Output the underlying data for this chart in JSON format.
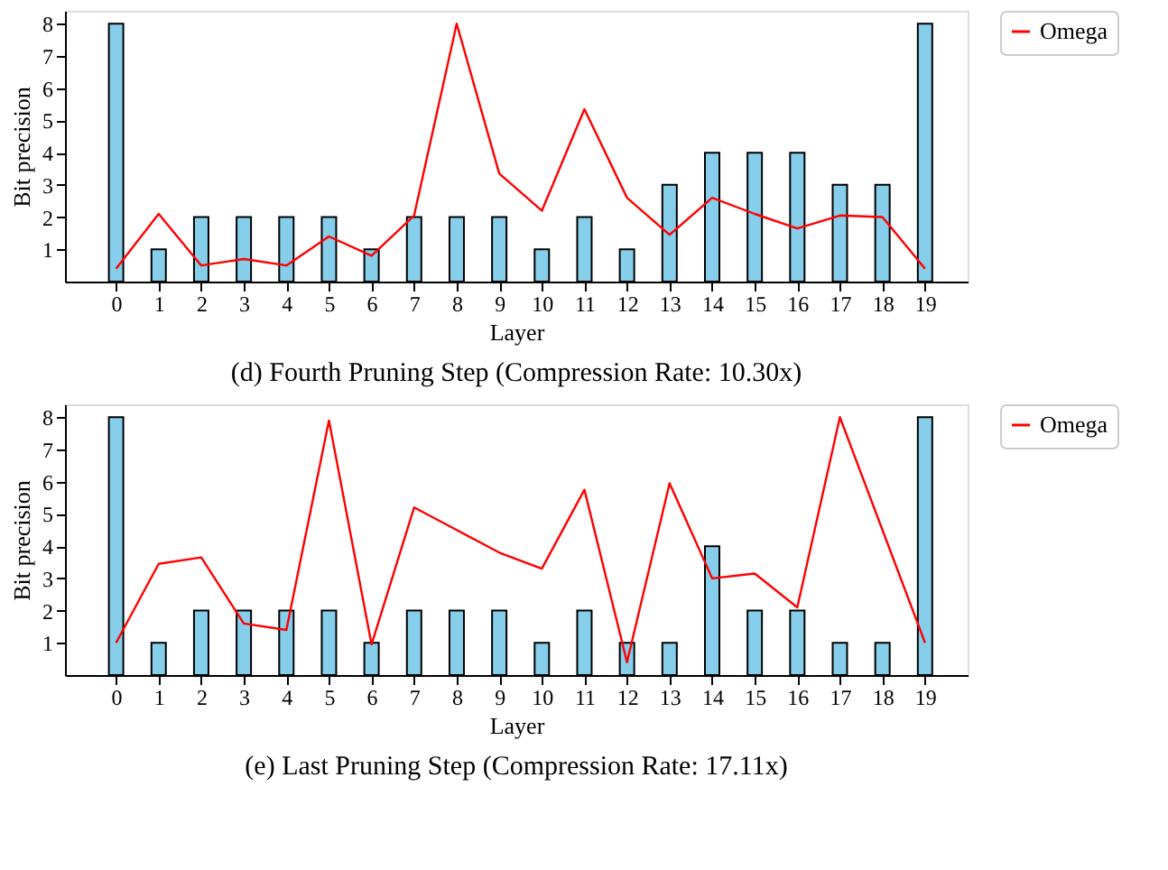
{
  "chart_data": [
    {
      "type": "bar",
      "title": "(d) Fourth Pruning Step (Compression Rate: 10.30x)",
      "xlabel": "Layer",
      "ylabel": "Bit precision",
      "x": [
        0,
        1,
        2,
        3,
        4,
        5,
        6,
        7,
        8,
        9,
        10,
        11,
        12,
        13,
        14,
        15,
        16,
        17,
        18,
        19
      ],
      "series": [
        {
          "color": "#87ceeb",
          "values": [
            8,
            1,
            2,
            2,
            2,
            2,
            1,
            2,
            2,
            2,
            1,
            2,
            1,
            3,
            4,
            4,
            4,
            3,
            3,
            8
          ]
        },
        {
          "type": "line",
          "name": "Omega",
          "color": "#ff0000",
          "values": [
            0.4,
            2.1,
            0.5,
            0.7,
            0.5,
            1.4,
            0.8,
            2.05,
            8.0,
            3.35,
            2.2,
            5.35,
            2.6,
            1.45,
            2.6,
            2.1,
            1.65,
            2.05,
            2.0,
            0.4
          ]
        }
      ],
      "xlim": [
        -1.2,
        20
      ],
      "xticks": [
        0,
        1,
        2,
        3,
        4,
        5,
        6,
        7,
        8,
        9,
        10,
        11,
        12,
        13,
        14,
        15,
        16,
        17,
        18,
        19
      ],
      "ylim": [
        0,
        8.4
      ],
      "yticks": [
        1,
        2,
        3,
        4,
        5,
        6,
        7,
        8
      ],
      "grid": false,
      "legend": "top right"
    },
    {
      "type": "bar",
      "title": "(e) Last Pruning Step (Compression Rate: 17.11x)",
      "xlabel": "Layer",
      "ylabel": "Bit precision",
      "x": [
        0,
        1,
        2,
        3,
        4,
        5,
        6,
        7,
        8,
        9,
        10,
        11,
        12,
        13,
        14,
        15,
        16,
        17,
        18,
        19
      ],
      "series": [
        {
          "color": "#87ceeb",
          "values": [
            8,
            1,
            2,
            2,
            2,
            2,
            1,
            2,
            2,
            2,
            1,
            2,
            1,
            1,
            4,
            2,
            2,
            1,
            1,
            8
          ]
        },
        {
          "type": "line",
          "name": "Omega",
          "color": "#ff0000",
          "values": [
            1.0,
            3.45,
            3.65,
            1.6,
            1.4,
            7.9,
            0.95,
            5.2,
            4.5,
            3.8,
            3.3,
            5.75,
            0.4,
            5.95,
            3.0,
            3.15,
            2.1,
            8.0,
            4.5,
            1.0
          ]
        }
      ],
      "xlim": [
        -1.2,
        20
      ],
      "xticks": [
        0,
        1,
        2,
        3,
        4,
        5,
        6,
        7,
        8,
        9,
        10,
        11,
        12,
        13,
        14,
        15,
        16,
        17,
        18,
        19
      ],
      "ylim": [
        0,
        8.4
      ],
      "yticks": [
        1,
        2,
        3,
        4,
        5,
        6,
        7,
        8
      ],
      "grid": false,
      "legend": "top right"
    }
  ]
}
